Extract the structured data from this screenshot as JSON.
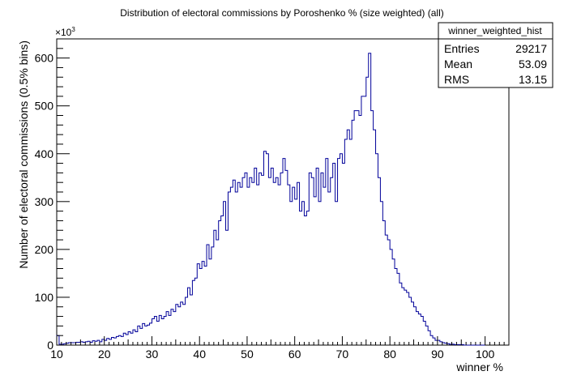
{
  "chart_data": {
    "type": "histogram",
    "title": "Distribution of electoral commissions by Poroshenko % (size weighted) (all)",
    "xlabel": "winner %",
    "ylabel": "Number of electoral commissions (0.5% bins)",
    "y_multiplier": "×10",
    "y_multiplier_exp": "3",
    "xlim": [
      10,
      105
    ],
    "ylim": [
      0,
      640
    ],
    "bin_width": 0.5,
    "grid": false,
    "x_ticks": [
      10,
      20,
      30,
      40,
      50,
      60,
      70,
      80,
      90,
      100
    ],
    "y_ticks": [
      0,
      100,
      200,
      300,
      400,
      500,
      600
    ],
    "stats": {
      "name": "winner_weighted_hist",
      "rows": [
        {
          "label": "Entries",
          "value": "29217"
        },
        {
          "label": "Mean",
          "value": "53.09"
        },
        {
          "label": "RMS",
          "value": "13.15"
        }
      ]
    },
    "series": [
      {
        "x_start": 10,
        "bin_width": 0.5,
        "color": "#000099",
        "values": [
          20,
          2,
          2,
          3,
          4,
          5,
          5,
          5,
          6,
          6,
          7,
          6,
          7,
          8,
          6,
          9,
          8,
          10,
          7,
          12,
          10,
          14,
          12,
          16,
          15,
          18,
          20,
          18,
          25,
          22,
          28,
          25,
          32,
          28,
          40,
          35,
          45,
          40,
          42,
          46,
          55,
          60,
          50,
          62,
          55,
          60,
          70,
          62,
          75,
          70,
          85,
          80,
          90,
          85,
          100,
          120,
          105,
          135,
          140,
          170,
          160,
          175,
          165,
          210,
          180,
          205,
          240,
          220,
          260,
          270,
          300,
          240,
          320,
          330,
          345,
          320,
          340,
          330,
          350,
          360,
          330,
          350,
          340,
          370,
          335,
          360,
          355,
          405,
          400,
          350,
          370,
          340,
          350,
          335,
          360,
          390,
          365,
          335,
          300,
          330,
          305,
          340,
          280,
          300,
          270,
          280,
          360,
          350,
          310,
          370,
          300,
          360,
          330,
          390,
          320,
          350,
          380,
          300,
          390,
          400,
          380,
          430,
          450,
          430,
          470,
          490,
          490,
          480,
          520,
          520,
          560,
          610,
          490,
          450,
          400,
          350,
          300,
          260,
          230,
          220,
          200,
          180,
          160,
          150,
          130,
          120,
          115,
          110,
          100,
          90,
          80,
          70,
          65,
          60,
          50,
          40,
          30,
          20,
          15,
          10,
          10,
          7,
          5,
          4,
          3,
          2,
          2,
          1,
          1,
          1,
          1,
          0,
          0,
          0,
          0,
          0,
          0,
          0,
          0,
          0
        ]
      }
    ]
  }
}
